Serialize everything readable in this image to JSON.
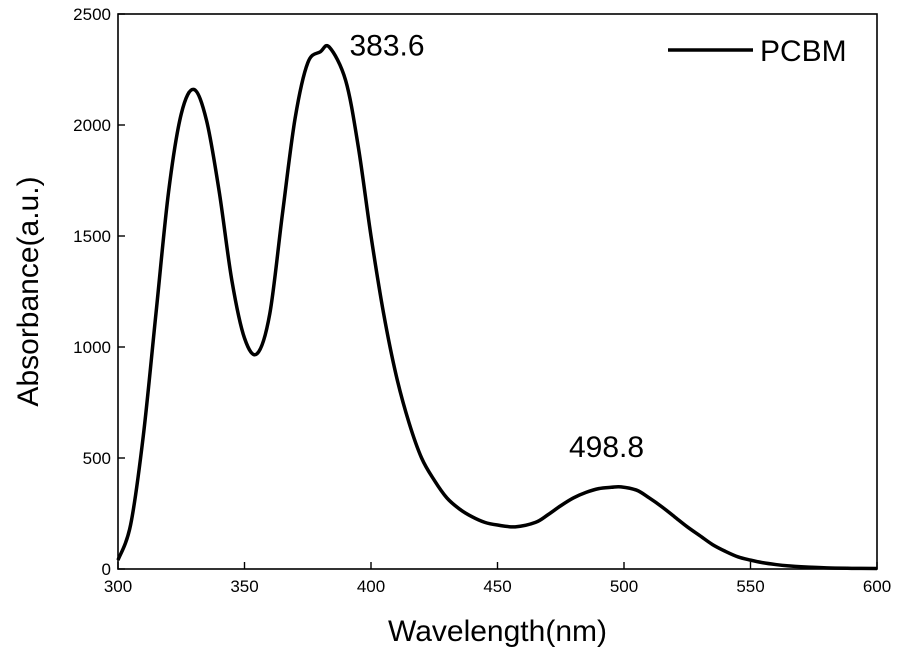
{
  "chart_data": {
    "type": "line",
    "title": "",
    "xlabel": "Wavelength(nm)",
    "ylabel": "Absorbance(a.u.)",
    "xlim": [
      300,
      600
    ],
    "ylim": [
      0,
      2500
    ],
    "xticks": [
      300,
      350,
      400,
      450,
      500,
      550,
      600
    ],
    "yticks": [
      0,
      500,
      1000,
      1500,
      2000,
      2500
    ],
    "grid": false,
    "legend_position": "top-right",
    "series": [
      {
        "name": "PCBM",
        "color": "#000000",
        "x": [
          300,
          305,
          310,
          315,
          320,
          325,
          330,
          335,
          340,
          345,
          350,
          355,
          360,
          365,
          370,
          375,
          380,
          383.6,
          390,
          395,
          400,
          405,
          410,
          415,
          420,
          425,
          430,
          435,
          440,
          445,
          450,
          457,
          465,
          470,
          475,
          480,
          485,
          490,
          495,
          498.8,
          505,
          510,
          515,
          520,
          525,
          530,
          535,
          540,
          545,
          550,
          555,
          560,
          565,
          570,
          580,
          590,
          600
        ],
        "y": [
          40,
          200,
          600,
          1150,
          1700,
          2050,
          2160,
          2020,
          1700,
          1300,
          1040,
          970,
          1150,
          1600,
          2030,
          2280,
          2330,
          2350,
          2200,
          1900,
          1500,
          1150,
          870,
          660,
          500,
          400,
          320,
          270,
          235,
          210,
          198,
          190,
          210,
          245,
          285,
          320,
          345,
          362,
          368,
          370,
          355,
          320,
          280,
          235,
          190,
          150,
          110,
          80,
          55,
          40,
          28,
          20,
          14,
          10,
          5,
          3,
          2
        ]
      }
    ],
    "annotations": [
      {
        "text": "383.6",
        "x": 383.6,
        "y": 2350
      },
      {
        "text": "498.8",
        "x": 498.8,
        "y": 370
      }
    ]
  }
}
